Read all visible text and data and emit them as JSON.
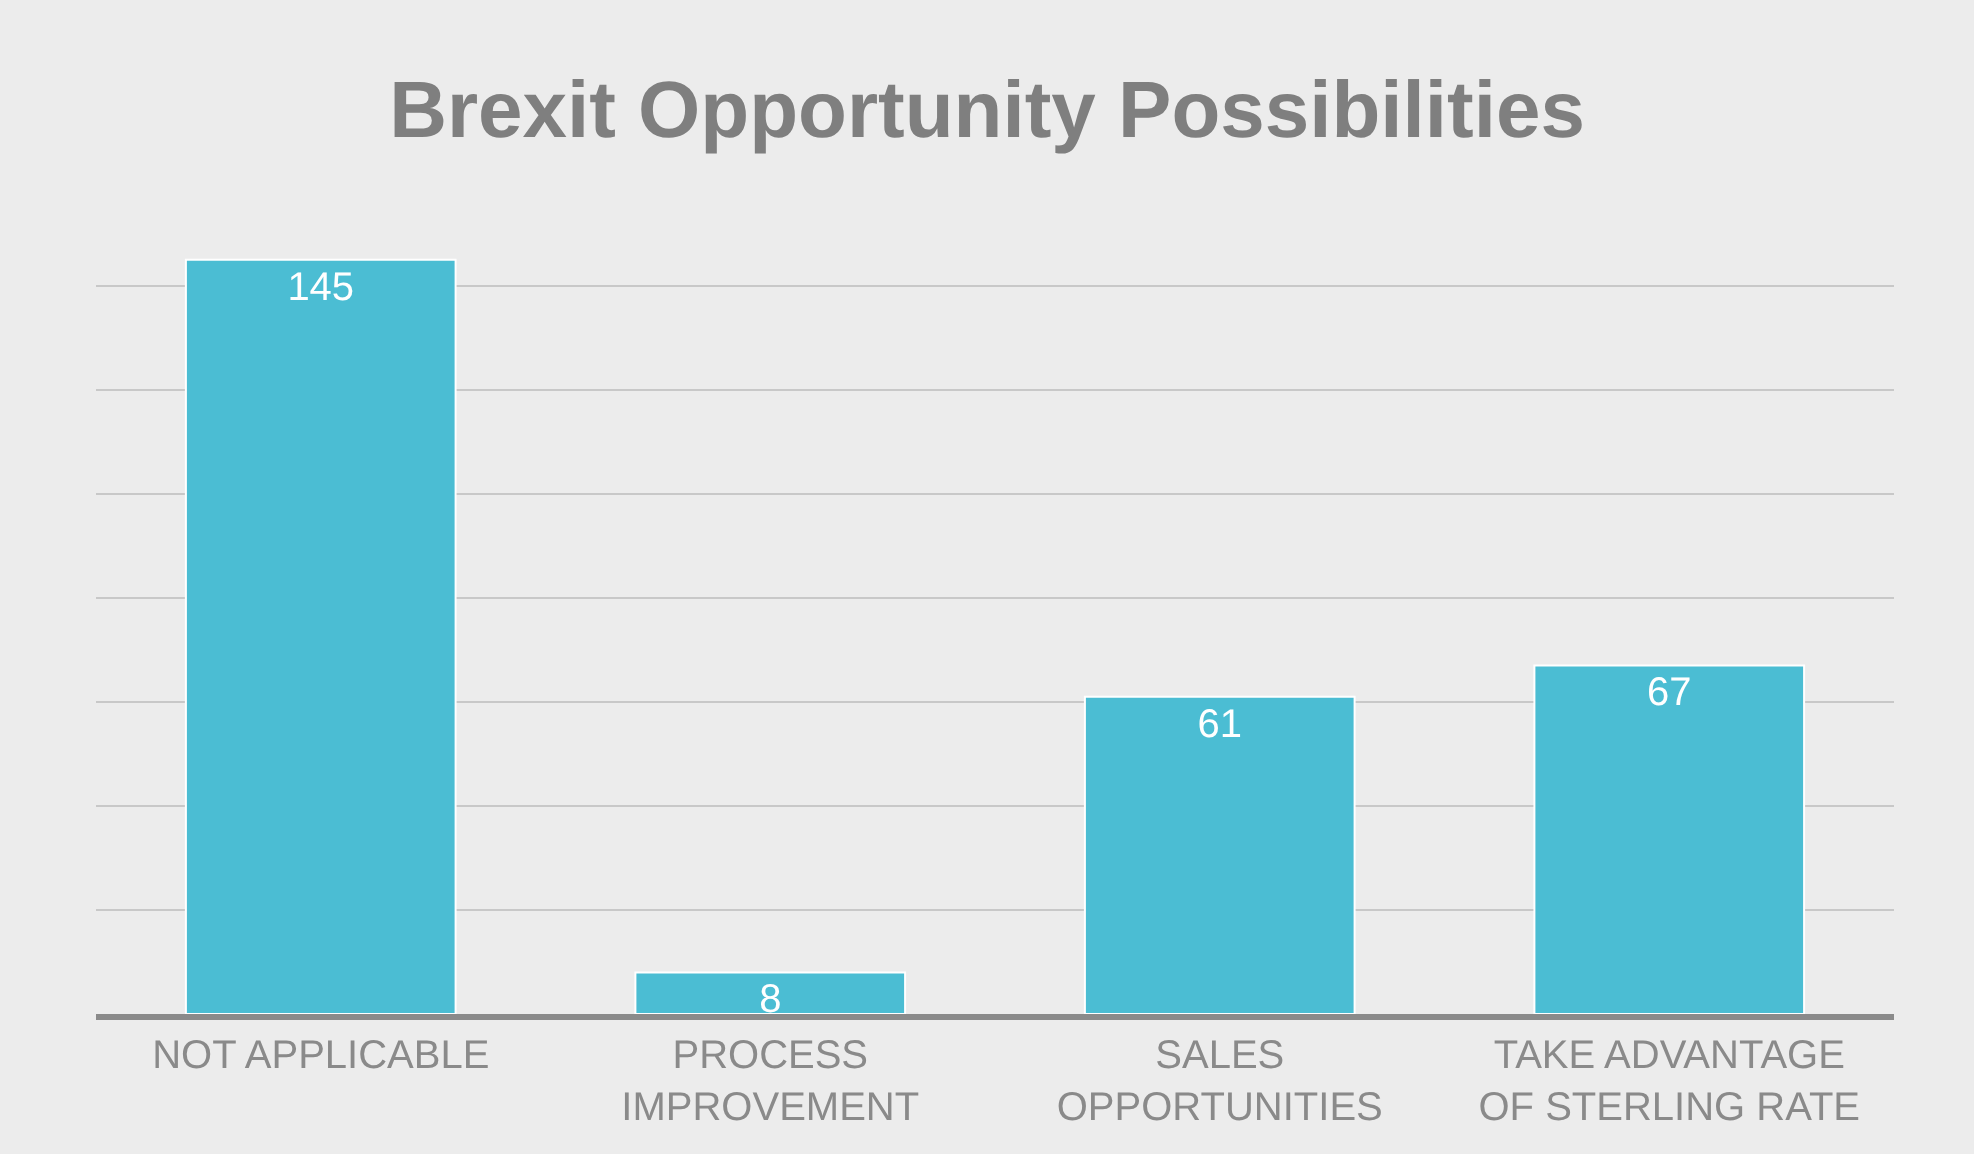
{
  "chart_data": {
    "type": "bar",
    "title": "Brexit Opportunity Possibilities",
    "categories": [
      "NOT APPLICABLE",
      "PROCESS IMPROVEMENT",
      "SALES OPPORTUNITIES",
      "TAKE ADVANTAGE OF STERLING RATE"
    ],
    "values": [
      145,
      8,
      61,
      67
    ],
    "color": "#4bbdd3",
    "tick_labels": "x",
    "grid": "y",
    "data_labels": true
  }
}
